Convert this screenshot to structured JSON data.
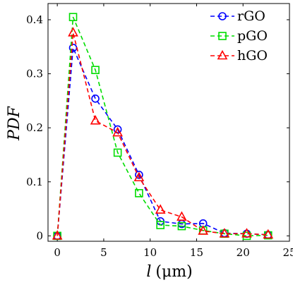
{
  "chart_data": {
    "type": "line",
    "xlabel_var": "l",
    "xlabel_unit": "(μm)",
    "ylabel": "PDF",
    "xlim": [
      -1,
      25
    ],
    "ylim": [
      -0.01,
      0.43
    ],
    "xticks": [
      0,
      5,
      10,
      15,
      20,
      25
    ],
    "yticks": [
      0,
      0.1,
      0.2,
      0.3,
      0.4
    ],
    "xtick_labels": [
      "0",
      "5",
      "10",
      "15",
      "20",
      "25"
    ],
    "ytick_labels": [
      "0",
      "0.1",
      "0.2",
      "0.3",
      "0.4"
    ],
    "grid": false,
    "legend_position": "top-right",
    "series": [
      {
        "name": "rGO",
        "color": "#0000ff",
        "marker": "circle",
        "x": [
          0,
          1.7,
          4.1,
          6.5,
          8.8,
          11.1,
          13.4,
          15.7,
          18.0,
          20.4,
          22.7
        ],
        "y": [
          0,
          0.348,
          0.254,
          0.197,
          0.113,
          0.027,
          0.022,
          0.023,
          0.005,
          0.004,
          0.002
        ]
      },
      {
        "name": "pGO",
        "color": "#00dd00",
        "marker": "square",
        "x": [
          0,
          1.7,
          4.1,
          6.5,
          8.8,
          11.1,
          13.4,
          15.7,
          18.0,
          20.4,
          22.7
        ],
        "y": [
          0,
          0.405,
          0.307,
          0.154,
          0.079,
          0.02,
          0.018,
          0.01,
          0.004,
          0.0,
          0.001
        ]
      },
      {
        "name": "hGO",
        "color": "#ff0000",
        "marker": "triangle",
        "x": [
          0,
          1.7,
          4.1,
          6.5,
          8.8,
          11.1,
          13.4,
          15.7,
          18.0,
          20.4,
          22.7
        ],
        "y": [
          0,
          0.376,
          0.213,
          0.191,
          0.108,
          0.048,
          0.035,
          0.009,
          0.004,
          0.004,
          0.002
        ]
      }
    ]
  }
}
